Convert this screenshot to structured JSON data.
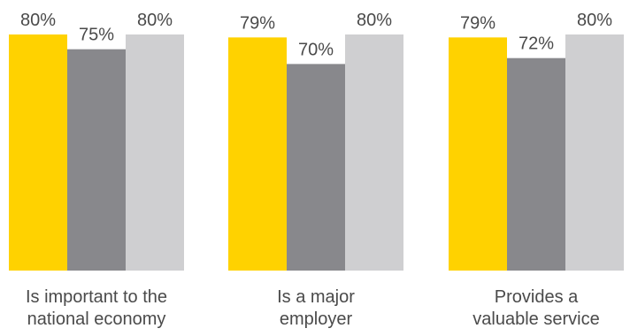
{
  "chart_data": {
    "type": "bar",
    "categories": [
      [
        "Is important to the",
        "national economy"
      ],
      [
        "Is a major",
        "employer"
      ],
      [
        "Provides a",
        "valuable service"
      ]
    ],
    "series": [
      {
        "values": [
          80,
          79,
          79
        ],
        "color": "#FFD200"
      },
      {
        "values": [
          75,
          70,
          72
        ],
        "color": "#88888C"
      },
      {
        "values": [
          80,
          80,
          80
        ],
        "color": "#CFCFD1"
      }
    ],
    "value_suffix": "%",
    "ylim": [
      0,
      100
    ],
    "grid": false,
    "legend": "none"
  }
}
